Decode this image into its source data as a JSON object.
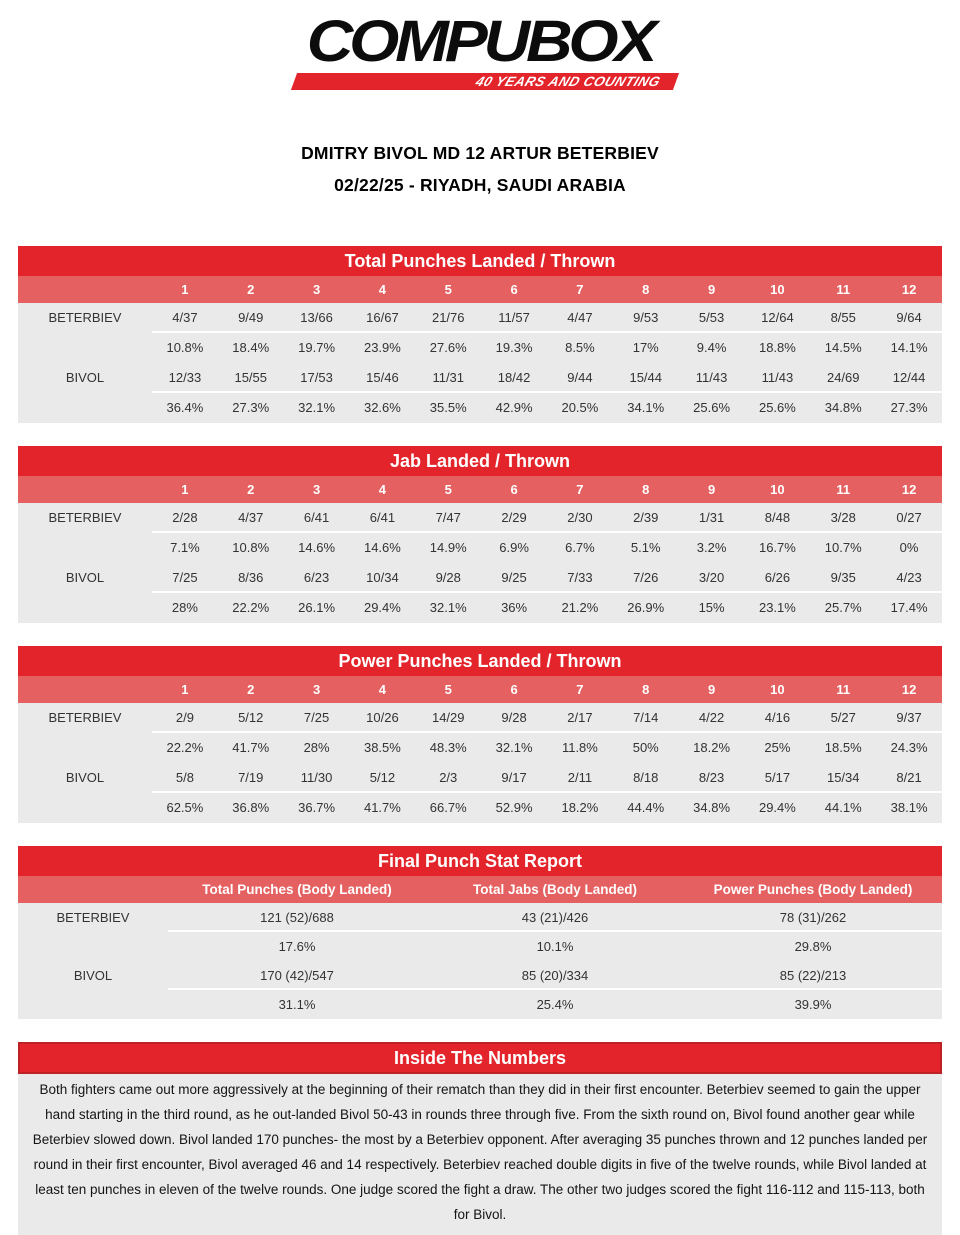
{
  "logo": {
    "brand": "COMPUBOX",
    "tagline": "40 YEARS AND COUNTING"
  },
  "fight_title": {
    "line1": "DMITRY BIVOL MD 12 ARTUR BETERBIEV",
    "line2": "02/22/25 - RIYADH, SAUDI ARABIA"
  },
  "colors": {
    "red": "#E3252B",
    "light_red": "#E56060",
    "row_bg": "#EAEAEA"
  },
  "round_headers": [
    "1",
    "2",
    "3",
    "4",
    "5",
    "6",
    "7",
    "8",
    "9",
    "10",
    "11",
    "12"
  ],
  "round_tables": [
    {
      "title": "Total Punches Landed / Thrown",
      "rows": [
        {
          "name": "BETERBIEV",
          "values": [
            "4/37",
            "9/49",
            "13/66",
            "16/67",
            "21/76",
            "11/57",
            "4/47",
            "9/53",
            "5/53",
            "12/64",
            "8/55",
            "9/64"
          ]
        },
        {
          "name": "",
          "values": [
            "10.8%",
            "18.4%",
            "19.7%",
            "23.9%",
            "27.6%",
            "19.3%",
            "8.5%",
            "17%",
            "9.4%",
            "18.8%",
            "14.5%",
            "14.1%"
          ]
        },
        {
          "name": "BIVOL",
          "values": [
            "12/33",
            "15/55",
            "17/53",
            "15/46",
            "11/31",
            "18/42",
            "9/44",
            "15/44",
            "11/43",
            "11/43",
            "24/69",
            "12/44"
          ]
        },
        {
          "name": "",
          "values": [
            "36.4%",
            "27.3%",
            "32.1%",
            "32.6%",
            "35.5%",
            "42.9%",
            "20.5%",
            "34.1%",
            "25.6%",
            "25.6%",
            "34.8%",
            "27.3%"
          ]
        }
      ]
    },
    {
      "title": "Jab Landed / Thrown",
      "rows": [
        {
          "name": "BETERBIEV",
          "values": [
            "2/28",
            "4/37",
            "6/41",
            "6/41",
            "7/47",
            "2/29",
            "2/30",
            "2/39",
            "1/31",
            "8/48",
            "3/28",
            "0/27"
          ]
        },
        {
          "name": "",
          "values": [
            "7.1%",
            "10.8%",
            "14.6%",
            "14.6%",
            "14.9%",
            "6.9%",
            "6.7%",
            "5.1%",
            "3.2%",
            "16.7%",
            "10.7%",
            "0%"
          ]
        },
        {
          "name": "BIVOL",
          "values": [
            "7/25",
            "8/36",
            "6/23",
            "10/34",
            "9/28",
            "9/25",
            "7/33",
            "7/26",
            "3/20",
            "6/26",
            "9/35",
            "4/23"
          ]
        },
        {
          "name": "",
          "values": [
            "28%",
            "22.2%",
            "26.1%",
            "29.4%",
            "32.1%",
            "36%",
            "21.2%",
            "26.9%",
            "15%",
            "23.1%",
            "25.7%",
            "17.4%"
          ]
        }
      ]
    },
    {
      "title": "Power Punches Landed / Thrown",
      "rows": [
        {
          "name": "BETERBIEV",
          "values": [
            "2/9",
            "5/12",
            "7/25",
            "10/26",
            "14/29",
            "9/28",
            "2/17",
            "7/14",
            "4/22",
            "4/16",
            "5/27",
            "9/37"
          ]
        },
        {
          "name": "",
          "values": [
            "22.2%",
            "41.7%",
            "28%",
            "38.5%",
            "48.3%",
            "32.1%",
            "11.8%",
            "50%",
            "18.2%",
            "25%",
            "18.5%",
            "24.3%"
          ]
        },
        {
          "name": "BIVOL",
          "values": [
            "5/8",
            "7/19",
            "11/30",
            "5/12",
            "2/3",
            "9/17",
            "2/11",
            "8/18",
            "8/23",
            "5/17",
            "15/34",
            "8/21"
          ]
        },
        {
          "name": "",
          "values": [
            "62.5%",
            "36.8%",
            "36.7%",
            "41.7%",
            "66.7%",
            "52.9%",
            "18.2%",
            "44.4%",
            "34.8%",
            "29.4%",
            "44.1%",
            "38.1%"
          ]
        }
      ]
    }
  ],
  "final_report": {
    "title": "Final Punch Stat Report",
    "columns": [
      "Total Punches (Body Landed)",
      "Total Jabs (Body Landed)",
      "Power Punches (Body Landed)"
    ],
    "rows": [
      {
        "name": "BETERBIEV",
        "values": [
          "121 (52)/688",
          "43 (21)/426",
          "78 (31)/262"
        ]
      },
      {
        "name": "",
        "values": [
          "17.6%",
          "10.1%",
          "29.8%"
        ]
      },
      {
        "name": "BIVOL",
        "values": [
          "170 (42)/547",
          "85 (20)/334",
          "85 (22)/213"
        ]
      },
      {
        "name": "",
        "values": [
          "31.1%",
          "25.4%",
          "39.9%"
        ]
      }
    ]
  },
  "inside_numbers": {
    "title": "Inside The Numbers",
    "text": "Both fighters came out more aggressively at the beginning of their rematch than they did in their first encounter. Beterbiev seemed to gain the upper hand starting in the third round, as he out-landed Bivol 50-43 in rounds three through five. From the sixth round on, Bivol found another gear while Beterbiev slowed down. Bivol landed 170 punches- the most by a Beterbiev opponent. After averaging 35 punches thrown and 12 punches landed per round in their first encounter, Bivol averaged 46 and 14 respectively. Beterbiev reached double digits in five of the twelve rounds, while Bivol landed at least ten punches in eleven of the twelve rounds. One judge scored the fight a draw. The other two judges scored the fight 116-112 and 115-113, both for Bivol."
  }
}
